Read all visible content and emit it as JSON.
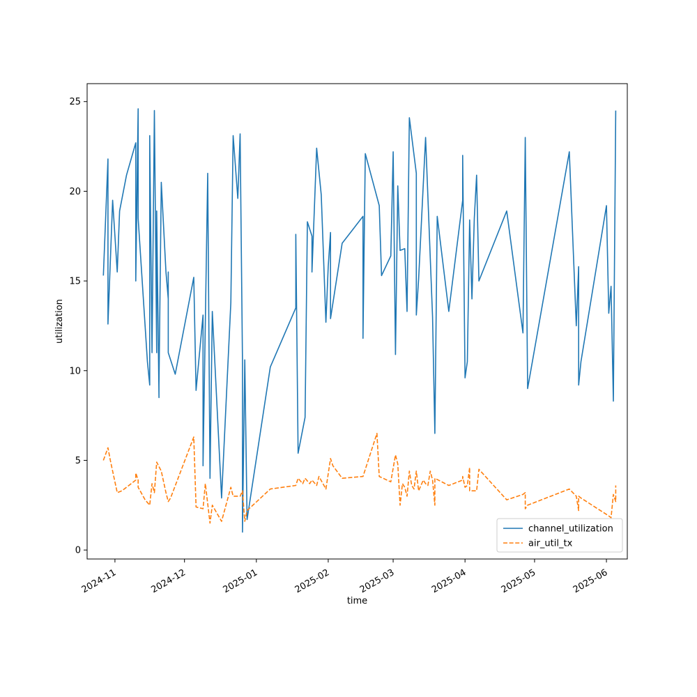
{
  "chart_data": {
    "type": "line",
    "title": "",
    "xlabel": "time",
    "ylabel": "utilization",
    "xlim": [
      "2024-10-20",
      "2025-06-10"
    ],
    "ylim": [
      -0.5,
      26.0
    ],
    "x_ticks": [
      "2024-11-01",
      "2024-12-01",
      "2025-01-01",
      "2025-02-01",
      "2025-03-01",
      "2025-04-01",
      "2025-05-01",
      "2025-06-01"
    ],
    "x_tick_labels": [
      "2024-11",
      "2024-12",
      "2025-01",
      "2025-02",
      "2025-03",
      "2025-04",
      "2025-05",
      "2025-06"
    ],
    "y_ticks": [
      0,
      5,
      10,
      15,
      20,
      25
    ],
    "y_tick_labels": [
      "0",
      "5",
      "10",
      "15",
      "20",
      "25"
    ],
    "grid": false,
    "legend_position": "lower-right",
    "series": [
      {
        "name": "channel_utilization",
        "color": "#1f77b4",
        "dash": "solid",
        "points": [
          [
            "2024-10-27",
            15.3
          ],
          [
            "2024-10-29",
            21.8
          ],
          [
            "2024-10-29",
            12.6
          ],
          [
            "2024-10-31",
            19.5
          ],
          [
            "2024-11-02",
            15.5
          ],
          [
            "2024-11-03",
            18.9
          ],
          [
            "2024-11-06",
            20.9
          ],
          [
            "2024-11-10",
            22.7
          ],
          [
            "2024-11-10",
            15.0
          ],
          [
            "2024-11-11",
            24.6
          ],
          [
            "2024-11-11",
            18.5
          ],
          [
            "2024-11-15",
            10.5
          ],
          [
            "2024-11-16",
            9.2
          ],
          [
            "2024-11-16",
            23.1
          ],
          [
            "2024-11-17",
            11.0
          ],
          [
            "2024-11-18",
            24.5
          ],
          [
            "2024-11-19",
            11.0
          ],
          [
            "2024-11-19",
            18.9
          ],
          [
            "2024-11-20",
            8.5
          ],
          [
            "2024-11-20",
            9.2
          ],
          [
            "2024-11-21",
            20.5
          ],
          [
            "2024-11-23",
            15.5
          ],
          [
            "2024-11-24",
            14.0
          ],
          [
            "2024-11-24",
            15.5
          ],
          [
            "2024-11-24",
            11.0
          ],
          [
            "2024-11-27",
            9.8
          ],
          [
            "2024-12-05",
            15.2
          ],
          [
            "2024-12-06",
            8.9
          ],
          [
            "2024-12-09",
            13.1
          ],
          [
            "2024-12-09",
            4.7
          ],
          [
            "2024-12-11",
            21.0
          ],
          [
            "2024-12-12",
            4.0
          ],
          [
            "2024-12-13",
            13.3
          ],
          [
            "2024-12-17",
            2.9
          ],
          [
            "2024-12-21",
            13.8
          ],
          [
            "2024-12-22",
            23.1
          ],
          [
            "2024-12-24",
            19.6
          ],
          [
            "2024-12-25",
            23.2
          ],
          [
            "2024-12-26",
            10.5
          ],
          [
            "2024-12-26",
            9.8
          ],
          [
            "2024-12-26",
            1.0
          ],
          [
            "2024-12-27",
            10.6
          ],
          [
            "2024-12-28",
            1.7
          ],
          [
            "2025-01-07",
            10.2
          ],
          [
            "2025-01-18",
            13.5
          ],
          [
            "2025-01-18",
            17.6
          ],
          [
            "2025-01-19",
            5.4
          ],
          [
            "2025-01-22",
            7.4
          ],
          [
            "2025-01-23",
            18.3
          ],
          [
            "2025-01-25",
            17.5
          ],
          [
            "2025-01-25",
            15.5
          ],
          [
            "2025-01-27",
            22.4
          ],
          [
            "2025-01-29",
            19.8
          ],
          [
            "2025-01-31",
            12.7
          ],
          [
            "2025-02-01",
            15.8
          ],
          [
            "2025-02-02",
            17.7
          ],
          [
            "2025-02-02",
            12.9
          ],
          [
            "2025-02-07",
            17.1
          ],
          [
            "2025-02-16",
            18.6
          ],
          [
            "2025-02-16",
            11.8
          ],
          [
            "2025-02-17",
            22.1
          ],
          [
            "2025-02-23",
            19.2
          ],
          [
            "2025-02-24",
            15.3
          ],
          [
            "2025-02-28",
            16.4
          ],
          [
            "2025-03-01",
            22.2
          ],
          [
            "2025-03-02",
            10.9
          ],
          [
            "2025-03-03",
            20.3
          ],
          [
            "2025-03-04",
            16.7
          ],
          [
            "2025-03-06",
            16.8
          ],
          [
            "2025-03-07",
            13.3
          ],
          [
            "2025-03-08",
            24.1
          ],
          [
            "2025-03-11",
            21.0
          ],
          [
            "2025-03-11",
            13.1
          ],
          [
            "2025-03-12",
            15.1
          ],
          [
            "2025-03-15",
            23.0
          ],
          [
            "2025-03-18",
            13.0
          ],
          [
            "2025-03-19",
            6.5
          ],
          [
            "2025-03-20",
            18.6
          ],
          [
            "2025-03-25",
            13.3
          ],
          [
            "2025-03-31",
            19.5
          ],
          [
            "2025-03-31",
            22.0
          ],
          [
            "2025-04-01",
            9.6
          ],
          [
            "2025-04-02",
            10.5
          ],
          [
            "2025-04-03",
            18.4
          ],
          [
            "2025-04-04",
            14.0
          ],
          [
            "2025-04-05",
            18.5
          ],
          [
            "2025-04-06",
            20.9
          ],
          [
            "2025-04-07",
            15.0
          ],
          [
            "2025-04-19",
            18.9
          ],
          [
            "2025-04-26",
            12.1
          ],
          [
            "2025-04-27",
            23.0
          ],
          [
            "2025-04-28",
            9.0
          ],
          [
            "2025-05-16",
            22.2
          ],
          [
            "2025-05-19",
            12.5
          ],
          [
            "2025-05-20",
            15.8
          ],
          [
            "2025-05-20",
            9.2
          ],
          [
            "2025-05-21",
            10.5
          ],
          [
            "2025-06-01",
            19.2
          ],
          [
            "2025-06-02",
            13.2
          ],
          [
            "2025-06-03",
            14.7
          ],
          [
            "2025-06-04",
            8.3
          ],
          [
            "2025-06-05",
            24.5
          ]
        ]
      },
      {
        "name": "air_util_tx",
        "color": "#ff7f0e",
        "dash": "dashed",
        "points": [
          [
            "2024-10-27",
            5.0
          ],
          [
            "2024-10-29",
            5.7
          ],
          [
            "2024-10-30",
            5.0
          ],
          [
            "2024-11-02",
            3.2
          ],
          [
            "2024-11-04",
            3.3
          ],
          [
            "2024-11-10",
            3.9
          ],
          [
            "2024-11-10",
            4.3
          ],
          [
            "2024-11-11",
            3.9
          ],
          [
            "2024-11-11",
            3.5
          ],
          [
            "2024-11-14",
            2.8
          ],
          [
            "2024-11-16",
            2.5
          ],
          [
            "2024-11-17",
            3.7
          ],
          [
            "2024-11-18",
            3.2
          ],
          [
            "2024-11-19",
            4.9
          ],
          [
            "2024-11-21",
            4.4
          ],
          [
            "2024-11-23",
            3.2
          ],
          [
            "2024-11-24",
            2.7
          ],
          [
            "2024-11-25",
            2.9
          ],
          [
            "2024-12-05",
            6.3
          ],
          [
            "2024-12-06",
            2.4
          ],
          [
            "2024-12-09",
            2.3
          ],
          [
            "2024-12-10",
            3.7
          ],
          [
            "2024-12-12",
            1.5
          ],
          [
            "2024-12-13",
            2.5
          ],
          [
            "2024-12-17",
            1.6
          ],
          [
            "2024-12-21",
            3.5
          ],
          [
            "2024-12-22",
            3.0
          ],
          [
            "2024-12-25",
            3.0
          ],
          [
            "2024-12-26",
            3.3
          ],
          [
            "2024-12-27",
            1.6
          ],
          [
            "2024-12-28",
            2.2
          ],
          [
            "2025-01-07",
            3.4
          ],
          [
            "2025-01-18",
            3.6
          ],
          [
            "2025-01-19",
            4.0
          ],
          [
            "2025-01-21",
            3.7
          ],
          [
            "2025-01-22",
            4.0
          ],
          [
            "2025-01-24",
            3.7
          ],
          [
            "2025-01-25",
            3.9
          ],
          [
            "2025-01-27",
            3.6
          ],
          [
            "2025-01-28",
            4.1
          ],
          [
            "2025-01-31",
            3.4
          ],
          [
            "2025-02-02",
            5.1
          ],
          [
            "2025-02-03",
            4.7
          ],
          [
            "2025-02-07",
            4.0
          ],
          [
            "2025-02-16",
            4.1
          ],
          [
            "2025-02-22",
            6.5
          ],
          [
            "2025-02-23",
            4.1
          ],
          [
            "2025-02-28",
            3.8
          ],
          [
            "2025-03-02",
            5.3
          ],
          [
            "2025-03-03",
            4.8
          ],
          [
            "2025-03-04",
            2.5
          ],
          [
            "2025-03-05",
            3.7
          ],
          [
            "2025-03-06",
            3.5
          ],
          [
            "2025-03-07",
            3.0
          ],
          [
            "2025-03-08",
            4.4
          ],
          [
            "2025-03-09",
            3.6
          ],
          [
            "2025-03-10",
            3.4
          ],
          [
            "2025-03-11",
            4.4
          ],
          [
            "2025-03-12",
            3.3
          ],
          [
            "2025-03-14",
            3.9
          ],
          [
            "2025-03-15",
            3.7
          ],
          [
            "2025-03-16",
            3.6
          ],
          [
            "2025-03-17",
            4.4
          ],
          [
            "2025-03-18",
            3.9
          ],
          [
            "2025-03-19",
            2.5
          ],
          [
            "2025-03-19",
            4.0
          ],
          [
            "2025-03-25",
            3.6
          ],
          [
            "2025-03-31",
            3.9
          ],
          [
            "2025-03-31",
            4.1
          ],
          [
            "2025-04-01",
            3.5
          ],
          [
            "2025-04-02",
            3.6
          ],
          [
            "2025-04-03",
            4.6
          ],
          [
            "2025-04-03",
            3.3
          ],
          [
            "2025-04-06",
            3.3
          ],
          [
            "2025-04-07",
            4.5
          ],
          [
            "2025-04-19",
            2.8
          ],
          [
            "2025-04-26",
            3.1
          ],
          [
            "2025-04-27",
            3.2
          ],
          [
            "2025-04-27",
            2.3
          ],
          [
            "2025-04-28",
            2.5
          ],
          [
            "2025-05-16",
            3.4
          ],
          [
            "2025-05-19",
            3.0
          ],
          [
            "2025-05-20",
            2.2
          ],
          [
            "2025-05-20",
            3.0
          ],
          [
            "2025-05-21",
            2.9
          ],
          [
            "2025-06-02",
            1.9
          ],
          [
            "2025-06-03",
            1.8
          ],
          [
            "2025-06-04",
            3.1
          ],
          [
            "2025-06-05",
            2.7
          ],
          [
            "2025-06-05",
            3.6
          ]
        ]
      }
    ]
  }
}
